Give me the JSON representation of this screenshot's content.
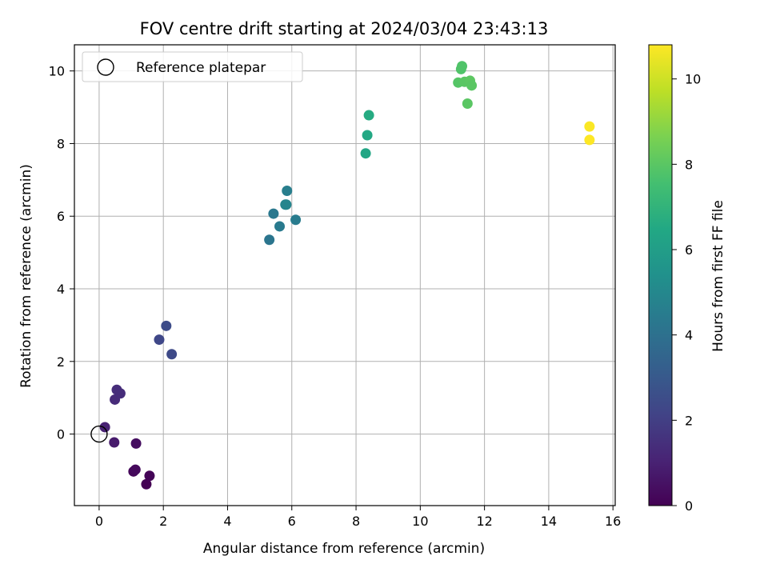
{
  "chart_data": {
    "type": "scatter",
    "title": "FOV centre drift starting at 2024/03/04 23:43:13",
    "xlabel": "Angular distance from reference (arcmin)",
    "ylabel": "Rotation from reference (arcmin)",
    "xlim": [
      -0.77,
      16.07
    ],
    "ylim": [
      -1.97,
      10.72
    ],
    "xticks": [
      0,
      2,
      4,
      6,
      8,
      10,
      12,
      14,
      16
    ],
    "yticks": [
      0,
      2,
      4,
      6,
      8,
      10
    ],
    "grid": true,
    "legend": {
      "placement": "top-left",
      "entries": [
        "Reference platepar"
      ]
    },
    "reference_point": {
      "x": 0,
      "y": 0
    },
    "colorbar": {
      "label": "Hours from first FF file",
      "colormap": "viridis",
      "range": [
        0,
        10.8
      ],
      "ticks": [
        0,
        2,
        4,
        6,
        8,
        10
      ]
    },
    "points": [
      {
        "x": 1.47,
        "y": -1.38,
        "hours": 0.0
      },
      {
        "x": 1.57,
        "y": -1.15,
        "hours": 0.1
      },
      {
        "x": 1.07,
        "y": -1.03,
        "hours": 0.2
      },
      {
        "x": 1.13,
        "y": -0.98,
        "hours": 0.25
      },
      {
        "x": 1.15,
        "y": -0.26,
        "hours": 0.4
      },
      {
        "x": 0.47,
        "y": -0.23,
        "hours": 0.8
      },
      {
        "x": 0.18,
        "y": 0.19,
        "hours": 1.0
      },
      {
        "x": 0.49,
        "y": 0.95,
        "hours": 1.3
      },
      {
        "x": 0.66,
        "y": 1.12,
        "hours": 1.35
      },
      {
        "x": 0.55,
        "y": 1.22,
        "hours": 1.4
      },
      {
        "x": 1.87,
        "y": 2.6,
        "hours": 2.3
      },
      {
        "x": 2.26,
        "y": 2.2,
        "hours": 2.4
      },
      {
        "x": 2.09,
        "y": 2.98,
        "hours": 2.5
      },
      {
        "x": 5.3,
        "y": 5.35,
        "hours": 4.2
      },
      {
        "x": 5.62,
        "y": 5.72,
        "hours": 4.4
      },
      {
        "x": 5.43,
        "y": 6.07,
        "hours": 4.3
      },
      {
        "x": 6.12,
        "y": 5.9,
        "hours": 4.5
      },
      {
        "x": 5.85,
        "y": 6.7,
        "hours": 4.6
      },
      {
        "x": 5.8,
        "y": 6.32,
        "hours": 4.9
      },
      {
        "x": 5.83,
        "y": 6.32,
        "hours": 4.9
      },
      {
        "x": 8.3,
        "y": 7.73,
        "hours": 6.4
      },
      {
        "x": 8.35,
        "y": 8.23,
        "hours": 6.5
      },
      {
        "x": 8.4,
        "y": 8.78,
        "hours": 6.6
      },
      {
        "x": 11.47,
        "y": 9.1,
        "hours": 8.0
      },
      {
        "x": 11.18,
        "y": 9.68,
        "hours": 7.9
      },
      {
        "x": 11.38,
        "y": 9.7,
        "hours": 8.0
      },
      {
        "x": 11.55,
        "y": 9.73,
        "hours": 8.05
      },
      {
        "x": 11.6,
        "y": 9.6,
        "hours": 8.0
      },
      {
        "x": 11.27,
        "y": 10.05,
        "hours": 7.8
      },
      {
        "x": 11.3,
        "y": 10.13,
        "hours": 7.8
      },
      {
        "x": 15.27,
        "y": 8.1,
        "hours": 10.8
      },
      {
        "x": 15.27,
        "y": 8.47,
        "hours": 10.75
      }
    ]
  }
}
